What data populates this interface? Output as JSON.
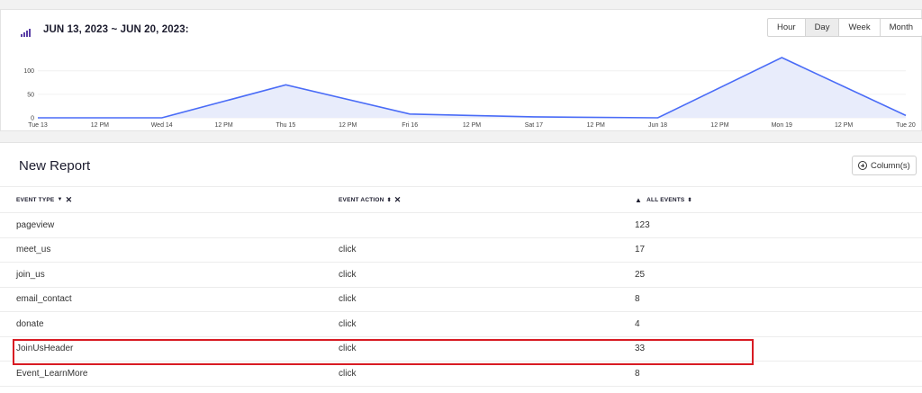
{
  "header": {
    "date_range": "JUN 13, 2023 ~ JUN 20, 2023:",
    "granularity": [
      "Hour",
      "Day",
      "Week",
      "Month"
    ],
    "active_granularity": "Day"
  },
  "chart_data": {
    "type": "area",
    "x_ticks": [
      "Tue 13",
      "12 PM",
      "Wed 14",
      "12 PM",
      "Thu 15",
      "12 PM",
      "Fri 16",
      "12 PM",
      "Sat 17",
      "12 PM",
      "Jun 18",
      "12 PM",
      "Mon 19",
      "12 PM",
      "Tue 20"
    ],
    "y_ticks": [
      "0",
      "50",
      "100"
    ],
    "ylim": [
      0,
      130
    ],
    "series": [
      {
        "points": [
          {
            "x": "Tue 13",
            "y": 0
          },
          {
            "x": "Wed 14",
            "y": 0
          },
          {
            "x": "Thu 15",
            "y": 70
          },
          {
            "x": "Fri 16",
            "y": 8
          },
          {
            "x": "Sat 17",
            "y": 2
          },
          {
            "x": "Jun 18",
            "y": 0
          },
          {
            "x": "Mon 19",
            "y": 128
          },
          {
            "x": "Tue 20",
            "y": 5
          }
        ]
      }
    ],
    "colors": {
      "line": "#4a6cf7",
      "fill": "#e8ecfb",
      "grid": "#f0f0f0"
    }
  },
  "report": {
    "title": "New Report",
    "columns_button": "Column(s)",
    "headers": {
      "event_type": "EVENT TYPE",
      "event_action": "EVENT ACTION",
      "all_events": "ALL EVENTS"
    },
    "rows": [
      {
        "event_type": "pageview",
        "event_action": "",
        "all_events": "123"
      },
      {
        "event_type": "meet_us",
        "event_action": "click",
        "all_events": "17"
      },
      {
        "event_type": "join_us",
        "event_action": "click",
        "all_events": "25"
      },
      {
        "event_type": "email_contact",
        "event_action": "click",
        "all_events": "8"
      },
      {
        "event_type": "donate",
        "event_action": "click",
        "all_events": "4"
      },
      {
        "event_type": "JoinUsHeader",
        "event_action": "click",
        "all_events": "33"
      },
      {
        "event_type": "Event_LearnMore",
        "event_action": "click",
        "all_events": "8"
      }
    ],
    "highlight_color": "#d81b23"
  }
}
